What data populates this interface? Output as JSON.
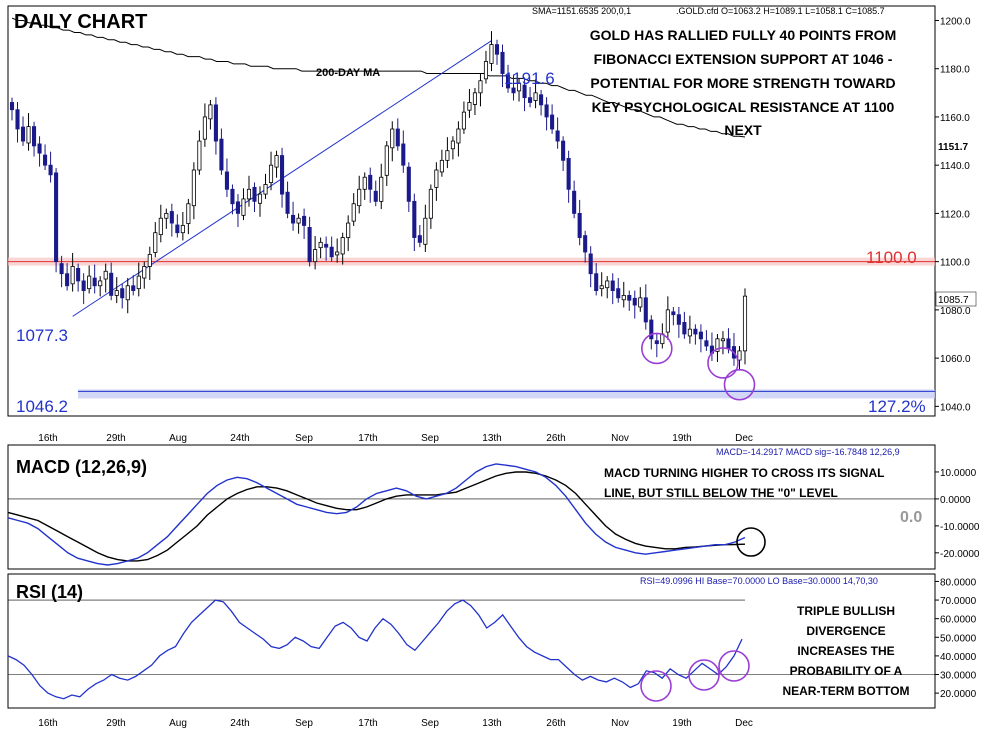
{
  "chart_data": [
    {
      "type": "candlestick",
      "title": "DAILY CHART",
      "header_left": "SMA=1151.6535  200,0,1",
      "header_right": ".GOLD.cfd O=1063.2 H=1089.1 L=1058.1 C=1085.7",
      "x_ticks": [
        "16th",
        "29th",
        "Aug",
        "24th",
        "Sep",
        "17th",
        "Sep",
        "13th",
        "26th",
        "Nov",
        "19th",
        "Dec"
      ],
      "y_ticks": [
        "1200.0",
        "1180.0",
        "1160.0",
        "1140.0",
        "1120.0",
        "1100.0",
        "1080.0",
        "1060.0",
        "1040.0"
      ],
      "ylim": [
        1036,
        1206
      ],
      "ma_label": "200-DAY MA",
      "ma_value_label": "1151.7",
      "last_price_label": "1085.7",
      "resistance_label": "1100.0",
      "resistance_level": 1100,
      "support_label": "1046.2",
      "support_level": 1046.2,
      "fib_label": "127.2%",
      "swing_low_label": "1077.3",
      "swing_high_label": "1191.6",
      "annotation": [
        "GOLD HAS RALLIED FULLY 40 POINTS FROM",
        "FIBONACCI EXTENSION SUPPORT AT 1046 -",
        "POTENTIAL FOR MORE STRENGTH TOWARD",
        "KEY PSYCHOLOGICAL RESISTANCE AT 1100",
        "NEXT"
      ],
      "closes": [
        1163,
        1155,
        1150,
        1156,
        1148,
        1145,
        1140,
        1136,
        1100,
        1095,
        1090,
        1098,
        1092,
        1088,
        1094,
        1090,
        1092,
        1096,
        1086,
        1088,
        1085,
        1090,
        1088,
        1094,
        1098,
        1103,
        1112,
        1118,
        1120,
        1116,
        1112,
        1115,
        1124,
        1138,
        1150,
        1160,
        1165,
        1150,
        1138,
        1130,
        1124,
        1120,
        1126,
        1130,
        1125,
        1128,
        1132,
        1140,
        1144,
        1128,
        1120,
        1116,
        1118,
        1115,
        1100,
        1105,
        1108,
        1106,
        1102,
        1104,
        1110,
        1116,
        1124,
        1130,
        1135,
        1130,
        1125,
        1135,
        1148,
        1155,
        1148,
        1140,
        1125,
        1110,
        1108,
        1118,
        1130,
        1138,
        1142,
        1146,
        1150,
        1155,
        1162,
        1166,
        1170,
        1175,
        1183,
        1190,
        1186,
        1178,
        1172,
        1170,
        1174,
        1168,
        1166,
        1170,
        1165,
        1160,
        1155,
        1150,
        1142,
        1130,
        1120,
        1110,
        1104,
        1095,
        1088,
        1090,
        1092,
        1088,
        1085,
        1086,
        1084,
        1082,
        1085,
        1075,
        1068,
        1066,
        1070,
        1080,
        1078,
        1074,
        1070,
        1072,
        1070,
        1068,
        1065,
        1062,
        1068,
        1068,
        1064,
        1060,
        1063,
        1085.7
      ],
      "ma_200": [
        1201,
        1200,
        1200,
        1199,
        1199,
        1198,
        1198,
        1197,
        1197,
        1196,
        1196,
        1195,
        1195,
        1194,
        1194,
        1193,
        1193,
        1192,
        1192,
        1191,
        1191,
        1190,
        1190,
        1189,
        1189,
        1188,
        1188,
        1187,
        1187,
        1186,
        1186,
        1185,
        1185,
        1185,
        1184,
        1184,
        1183,
        1183,
        1183,
        1182,
        1182,
        1182,
        1181,
        1181,
        1181,
        1181,
        1180,
        1180,
        1180,
        1180,
        1180,
        1179,
        1179,
        1179,
        1179,
        1179,
        1179,
        1179,
        1179,
        1179,
        1179,
        1179,
        1179,
        1179,
        1179,
        1179,
        1179,
        1179,
        1179,
        1179,
        1179,
        1179,
        1179,
        1178,
        1178,
        1178,
        1178,
        1178,
        1178,
        1178,
        1178,
        1178,
        1178,
        1178,
        1177,
        1177,
        1177,
        1177,
        1176,
        1176,
        1176,
        1175,
        1175,
        1174,
        1174,
        1173,
        1173,
        1172,
        1171,
        1171,
        1170,
        1169,
        1169,
        1168,
        1167,
        1166,
        1166,
        1165,
        1164,
        1163,
        1163,
        1162,
        1161,
        1160,
        1160,
        1159,
        1158,
        1157,
        1157,
        1156,
        1156,
        1155,
        1155,
        1154,
        1154,
        1153,
        1153,
        1152,
        1152,
        1151.7
      ]
    },
    {
      "type": "line",
      "title": "MACD (12,26,9)",
      "header": "MACD=-14.2917 MACD sig=-16.7848  12,26,9",
      "y_ticks": [
        "10.0000",
        "0.0000",
        "-10.0000",
        "-20.0000"
      ],
      "ylim": [
        -26,
        20
      ],
      "zero_label": "0.0",
      "annotation": [
        "MACD TURNING HIGHER TO CROSS ITS SIGNAL",
        "LINE, BUT STILL BELOW THE \"0\" LEVEL"
      ],
      "macd": [
        -7,
        -8,
        -9,
        -11,
        -14,
        -17,
        -20,
        -22,
        -23,
        -24,
        -24.5,
        -24,
        -23,
        -22,
        -20,
        -17,
        -14,
        -10,
        -6,
        -2,
        2,
        5,
        7,
        8,
        7.5,
        6,
        4,
        2,
        0,
        -2,
        -3,
        -4,
        -5,
        -5.5,
        -5,
        -3,
        0,
        2,
        3,
        4,
        3,
        1,
        0,
        1,
        2,
        4,
        7,
        10,
        12,
        13,
        12.5,
        12,
        11,
        10,
        8,
        5,
        1,
        -4,
        -9,
        -13,
        -16,
        -18,
        -19,
        -20,
        -20.5,
        -20,
        -19.5,
        -19,
        -18.5,
        -18,
        -17.5,
        -17,
        -17,
        -16,
        -14.3
      ],
      "signal": [
        -5,
        -6,
        -7,
        -8,
        -10,
        -12,
        -14,
        -16,
        -18,
        -20,
        -21.5,
        -22.5,
        -23,
        -23,
        -22.5,
        -21,
        -19,
        -16,
        -13,
        -10,
        -6,
        -3,
        0,
        2,
        3.5,
        4.5,
        4.5,
        4,
        3,
        1.5,
        0,
        -1.5,
        -2.5,
        -3.5,
        -4,
        -4,
        -3,
        -1.5,
        0,
        1,
        1.5,
        1.5,
        1.5,
        1.5,
        2,
        2.5,
        4,
        5.5,
        7,
        8.5,
        9.5,
        10,
        10,
        9.5,
        8.5,
        7,
        5,
        2,
        -2,
        -6,
        -10,
        -13,
        -15,
        -16.5,
        -17.5,
        -18,
        -18.5,
        -18.5,
        -18,
        -17.8,
        -17.5,
        -17.2,
        -17,
        -16.9,
        -16.8
      ]
    },
    {
      "type": "line",
      "title": "RSI (14)",
      "header": "RSI=49.0996 HI Base=70.0000 LO Base=30.0000  14,70,30",
      "y_ticks": [
        "80.0000",
        "70.0000",
        "60.0000",
        "50.0000",
        "40.0000",
        "30.0000",
        "20.0000"
      ],
      "ylim": [
        12,
        84
      ],
      "hi_base": 70,
      "lo_base": 30,
      "annotation": [
        "TRIPLE BULLISH",
        "DIVERGENCE",
        "INCREASES THE",
        "PROBABILITY OF A",
        "NEAR-TERM BOTTOM"
      ],
      "rsi": [
        40,
        38,
        35,
        30,
        24,
        20,
        18,
        17,
        19,
        18,
        22,
        25,
        27,
        30,
        28,
        27,
        29,
        32,
        35,
        40,
        43,
        45,
        52,
        58,
        62,
        66,
        70,
        69,
        64,
        58,
        55,
        52,
        49,
        45,
        44,
        46,
        50,
        48,
        45,
        44,
        50,
        56,
        58,
        55,
        50,
        48,
        55,
        60,
        57,
        52,
        46,
        43,
        48,
        53,
        58,
        64,
        68,
        70,
        67,
        62,
        55,
        58,
        62,
        56,
        50,
        45,
        42,
        40,
        38,
        38,
        34,
        30,
        27,
        29,
        27,
        26,
        28,
        26,
        23,
        25,
        32,
        31,
        28,
        33,
        30,
        28,
        32,
        36,
        33,
        30,
        34,
        40,
        49
      ]
    }
  ]
}
